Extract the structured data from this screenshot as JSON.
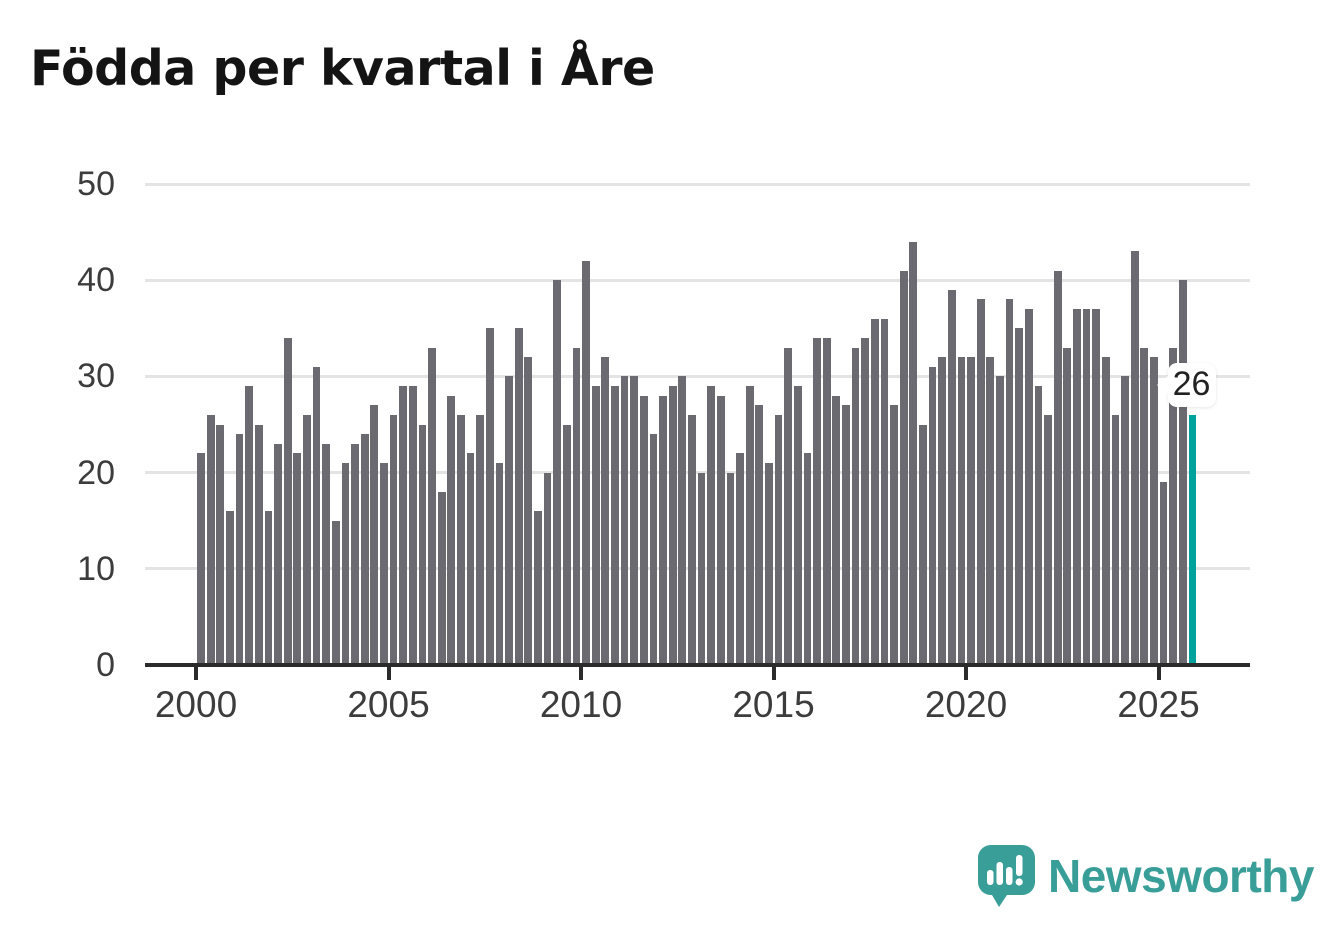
{
  "title": "Födda per kvartal i Åre",
  "chart_data": {
    "type": "bar",
    "title": "Födda per kvartal i Åre",
    "x_tick_labels": [
      "2000",
      "2005",
      "2010",
      "2015",
      "2020",
      "2025"
    ],
    "y_tick_labels": [
      "0",
      "10",
      "20",
      "30",
      "40",
      "50"
    ],
    "ylim": [
      0,
      50
    ],
    "x_range": "2000 Q1 – 2025 Q4",
    "grid": true,
    "legend": false,
    "values": [
      22,
      26,
      25,
      16,
      24,
      29,
      25,
      16,
      23,
      34,
      22,
      26,
      31,
      23,
      15,
      21,
      23,
      24,
      27,
      21,
      26,
      29,
      29,
      25,
      33,
      18,
      28,
      26,
      22,
      26,
      35,
      21,
      30,
      35,
      32,
      16,
      20,
      40,
      25,
      33,
      42,
      29,
      32,
      29,
      30,
      30,
      28,
      24,
      28,
      29,
      30,
      26,
      20,
      29,
      28,
      20,
      22,
      29,
      27,
      21,
      26,
      33,
      29,
      22,
      34,
      34,
      28,
      27,
      33,
      34,
      36,
      36,
      27,
      41,
      44,
      25,
      31,
      32,
      39,
      32,
      32,
      38,
      32,
      30,
      38,
      35,
      37,
      29,
      26,
      41,
      33,
      37,
      37,
      37,
      32,
      26,
      30,
      43,
      33,
      32,
      19,
      33,
      40,
      26
    ],
    "highlight_last": {
      "value": 26,
      "label": "26"
    },
    "colors": {
      "bar": "#6a6a70",
      "highlight": "#00a29b",
      "gridline": "#e4e4e4",
      "axis": "#2b2b2b",
      "tick_label": "#3c3c3c"
    }
  },
  "annotation": {
    "label": "26"
  },
  "branding": {
    "name": "Newsworthy",
    "color": "#3a9e98"
  }
}
